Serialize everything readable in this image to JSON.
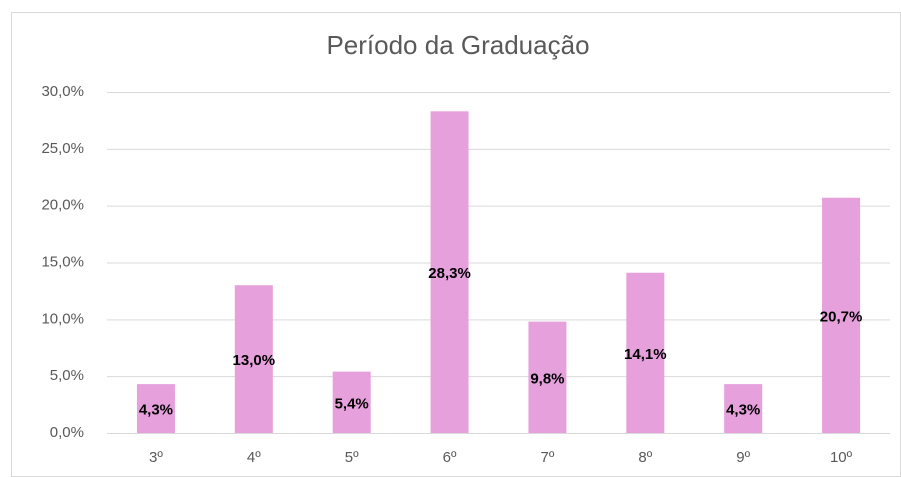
{
  "chart_data": {
    "type": "bar",
    "title": "Período da Graduação",
    "categories": [
      "3º",
      "4º",
      "5º",
      "6º",
      "7º",
      "8º",
      "9º",
      "10º"
    ],
    "values": [
      4.3,
      13.0,
      5.4,
      28.3,
      9.8,
      14.1,
      4.3,
      20.7
    ],
    "value_labels": [
      "4,3%",
      "13,0%",
      "5,4%",
      "28,3%",
      "9,8%",
      "14,1%",
      "4,3%",
      "20,7%"
    ],
    "color": "#e6a0dc",
    "ylim": [
      0,
      30
    ],
    "yticks": [
      {
        "value": 0,
        "label": "0,0%"
      },
      {
        "value": 5,
        "label": "5,0%"
      },
      {
        "value": 10,
        "label": "10,0%"
      },
      {
        "value": 15,
        "label": "15,0%"
      },
      {
        "value": 20,
        "label": "20,0%"
      },
      {
        "value": 25,
        "label": "25,0%"
      },
      {
        "value": 30,
        "label": "30,0%"
      }
    ],
    "grid": true
  }
}
